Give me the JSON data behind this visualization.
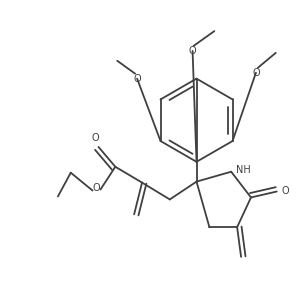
{
  "bg_color": "#ffffff",
  "line_color": "#404040",
  "line_width": 1.3,
  "figsize": [
    2.96,
    2.85
  ],
  "dpi": 100,
  "xlim": [
    -10,
    286
  ],
  "ylim": [
    -10,
    275
  ]
}
